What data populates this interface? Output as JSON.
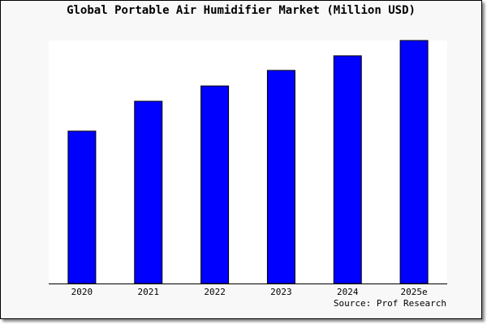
{
  "chart_data": {
    "type": "bar",
    "title": "Global Portable Air Humidifier Market (Million USD)",
    "categories": [
      "2020",
      "2021",
      "2022",
      "2023",
      "2024",
      "2025e"
    ],
    "values": [
      62.7,
      75.0,
      81.3,
      87.7,
      93.7,
      100.0
    ],
    "value_note_scale": "relative, no y-axis printed",
    "xlabel": "",
    "ylabel": "",
    "ylim": [
      0,
      100
    ],
    "grid": false,
    "legend": "none",
    "bar_color": "#0000ff",
    "source": "Source: Prof Research"
  }
}
